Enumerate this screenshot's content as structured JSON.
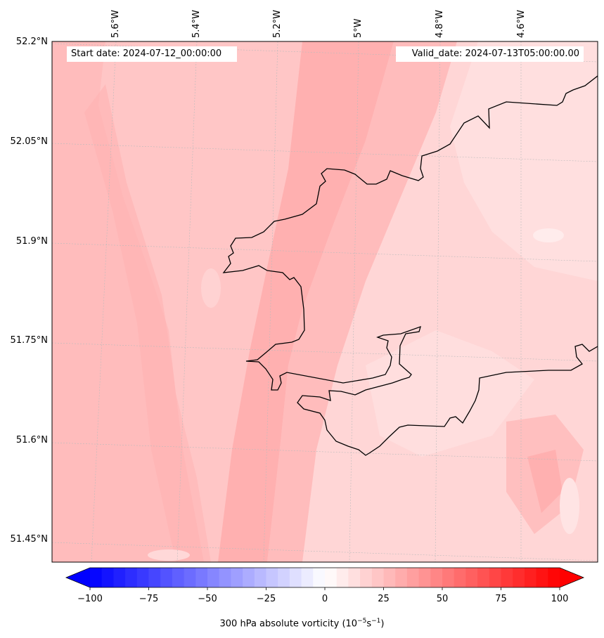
{
  "header": {
    "start_date": "Start date: 2024-07-12_00:00:00",
    "valid_date": "Valid_date: 2024-07-13T05:00:00.00"
  },
  "axes": {
    "longitude_labels": [
      "5.6°W",
      "5.4°W",
      "5.2°W",
      "5°W",
      "4.8°W",
      "4.6°W"
    ],
    "latitude_labels": [
      "52.2°N",
      "52.05°N",
      "51.9°N",
      "51.75°N",
      "51.6°N",
      "51.45°N"
    ]
  },
  "colorbar": {
    "tick_labels": [
      "−100",
      "−75",
      "−50",
      "−25",
      "0",
      "25",
      "50",
      "75",
      "100"
    ],
    "title": "300 hPa absolute vorticity (10",
    "title_exp1": "−5",
    "title_mid": "s",
    "title_exp2": "−1",
    "title_end": ")",
    "min": -100,
    "max": 100,
    "levels": 40,
    "colormap": "bwr",
    "extend": "both"
  },
  "colors": {
    "field_base": "#ffc4c4",
    "field_strong": "#ffb0b0",
    "field_weak": "#ffdcdc",
    "coastline": "#000000"
  }
}
